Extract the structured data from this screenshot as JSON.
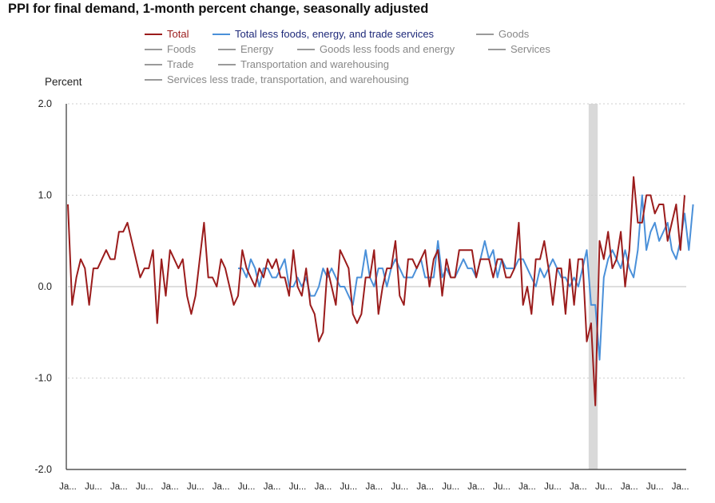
{
  "chart_data": {
    "type": "line",
    "title": "PPI for final demand, 1-month percent change, seasonally adjusted",
    "ylabel": "Percent",
    "ylim": [
      -2.0,
      2.0
    ],
    "yticks": [
      "2.0",
      "1.0",
      "0.0",
      "-1.0",
      "-2.0"
    ],
    "xticks": [
      "Ja...",
      "Ju...",
      "Ja...",
      "Ju...",
      "Ja...",
      "Ju...",
      "Ja...",
      "Ju...",
      "Ja...",
      "Ju...",
      "Ja...",
      "Ju...",
      "Ja...",
      "Ju...",
      "Ja...",
      "Ju...",
      "Ja...",
      "Ju...",
      "Ja...",
      "Ju...",
      "Ja...",
      "Ju...",
      "Ja...",
      "Ju...",
      "Ja..."
    ],
    "grid": "horizontal dotted",
    "recession_shading": {
      "color": "#d9d9d9",
      "from_index": 123,
      "to_index": 124
    },
    "legend": [
      {
        "name": "Total",
        "color": "#9b1c1c",
        "active": true
      },
      {
        "name": "Total less foods, energy, and trade services",
        "color": "#4a90d9",
        "active": true
      },
      {
        "name": "Goods",
        "color": "#9a9a9a",
        "active": false
      },
      {
        "name": "Foods",
        "color": "#9a9a9a",
        "active": false
      },
      {
        "name": "Energy",
        "color": "#9a9a9a",
        "active": false
      },
      {
        "name": "Goods less foods and energy",
        "color": "#9a9a9a",
        "active": false
      },
      {
        "name": "Services",
        "color": "#9a9a9a",
        "active": false
      },
      {
        "name": "Trade",
        "color": "#9a9a9a",
        "active": false
      },
      {
        "name": "Transportation and warehousing",
        "color": "#9a9a9a",
        "active": false
      },
      {
        "name": "Services less trade, transportation, and warehousing",
        "color": "#9a9a9a",
        "active": false
      }
    ],
    "series": [
      {
        "name": "Total",
        "color": "#9b1c1c",
        "start_index": 0,
        "values": [
          0.9,
          -0.2,
          0.1,
          0.3,
          0.2,
          -0.2,
          0.2,
          0.2,
          0.3,
          0.4,
          0.3,
          0.3,
          0.6,
          0.6,
          0.7,
          0.5,
          0.3,
          0.1,
          0.2,
          0.2,
          0.4,
          -0.4,
          0.3,
          -0.1,
          0.4,
          0.3,
          0.2,
          0.3,
          -0.1,
          -0.3,
          -0.1,
          0.3,
          0.7,
          0.1,
          0.1,
          0.0,
          0.3,
          0.2,
          0.0,
          -0.2,
          -0.1,
          0.4,
          0.2,
          0.1,
          0.0,
          0.2,
          0.1,
          0.3,
          0.2,
          0.3,
          0.1,
          0.1,
          -0.1,
          0.4,
          0.0,
          -0.1,
          0.2,
          -0.2,
          -0.3,
          -0.6,
          -0.5,
          0.2,
          0.0,
          -0.2,
          0.4,
          0.3,
          0.2,
          -0.3,
          -0.4,
          -0.3,
          0.1,
          0.1,
          0.4,
          -0.3,
          0.0,
          0.2,
          0.2,
          0.5,
          -0.1,
          -0.2,
          0.3,
          0.3,
          0.2,
          0.3,
          0.4,
          0.0,
          0.3,
          0.4,
          -0.1,
          0.3,
          0.1,
          0.1,
          0.4,
          0.4,
          0.4,
          0.4,
          0.1,
          0.3,
          0.3,
          0.3,
          0.1,
          0.3,
          0.3,
          0.1,
          0.1,
          0.2,
          0.7,
          -0.2,
          0.0,
          -0.3,
          0.3,
          0.3,
          0.5,
          0.2,
          -0.2,
          0.2,
          0.2,
          -0.3,
          0.3,
          -0.2,
          0.3,
          0.3,
          -0.6,
          -0.4,
          -1.3,
          0.5,
          0.3,
          0.6,
          0.2,
          0.3,
          0.6,
          0.0,
          0.4,
          1.2,
          0.7,
          0.7,
          1.0,
          1.0,
          0.8,
          0.9,
          0.9,
          0.5,
          0.7,
          0.9,
          0.4,
          1.0
        ]
      },
      {
        "name": "Total less foods, energy, and trade services",
        "color": "#4a90d9",
        "start_index": 40,
        "values": [
          0.2,
          0.2,
          0.1,
          0.3,
          0.2,
          0.0,
          0.2,
          0.2,
          0.1,
          0.1,
          0.2,
          0.3,
          0.0,
          0.0,
          0.1,
          0.0,
          0.1,
          -0.1,
          -0.1,
          0.0,
          0.2,
          0.1,
          0.2,
          0.1,
          0.0,
          0.0,
          -0.1,
          -0.2,
          0.1,
          0.1,
          0.4,
          0.1,
          0.0,
          0.2,
          0.2,
          0.0,
          0.2,
          0.3,
          0.2,
          0.1,
          0.1,
          0.1,
          0.2,
          0.3,
          0.1,
          0.1,
          0.1,
          0.5,
          0.1,
          0.2,
          0.1,
          0.1,
          0.2,
          0.3,
          0.2,
          0.2,
          0.1,
          0.3,
          0.5,
          0.3,
          0.4,
          0.1,
          0.3,
          0.2,
          0.2,
          0.2,
          0.3,
          0.3,
          0.2,
          0.1,
          0.0,
          0.2,
          0.1,
          0.2,
          0.3,
          0.2,
          0.1,
          0.1,
          0.0,
          0.1,
          0.0,
          0.2,
          0.4,
          -0.2,
          -0.2,
          -0.8,
          0.1,
          0.3,
          0.4,
          0.3,
          0.2,
          0.4,
          0.2,
          0.1,
          0.4,
          1.0,
          0.4,
          0.6,
          0.7,
          0.5,
          0.6,
          0.7,
          0.4,
          0.3,
          0.5,
          0.8,
          0.4,
          0.9
        ]
      }
    ]
  }
}
